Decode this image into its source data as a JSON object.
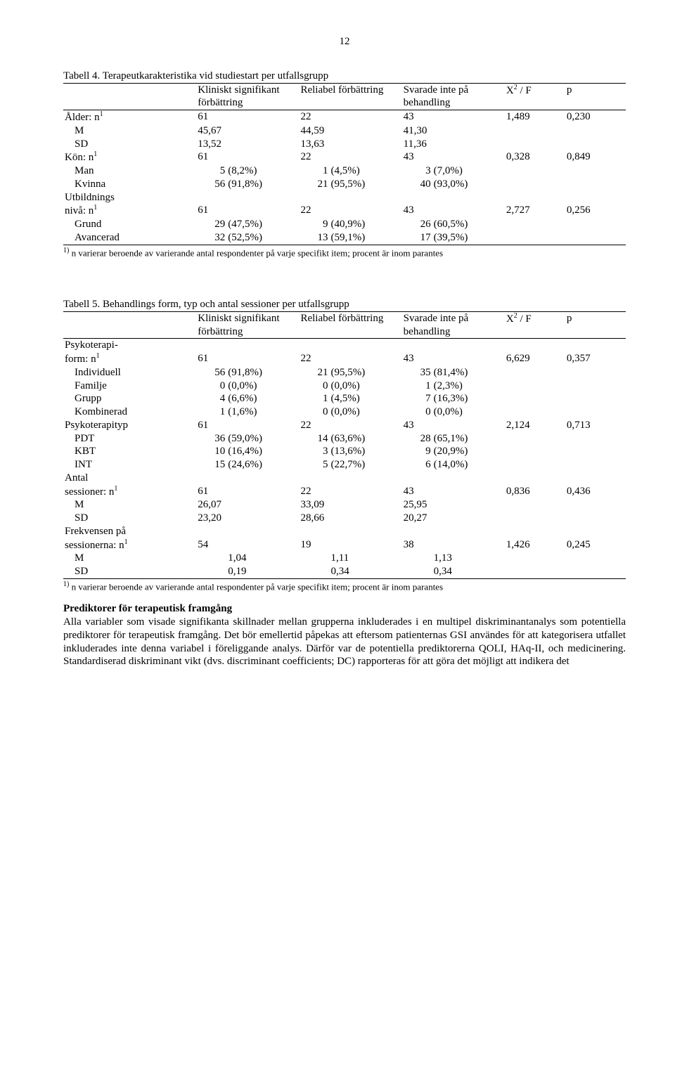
{
  "page_number": "12",
  "table4": {
    "caption": "Tabell 4. Terapeutkarakteristika vid studiestart per utfallsgrupp",
    "headers": {
      "c1": "Kliniskt signifikant förbättring",
      "c2": "Reliabel förbättring",
      "c3": "Svarade inte på behandling",
      "c4_html": "X<span class='sup'>2</span> / F",
      "c5": "p"
    },
    "rows": [
      {
        "label_html": "Ålder: n<span class='sup'>1</span>",
        "a": "61",
        "b": "22",
        "c": "43",
        "stat": "1,489",
        "p": "0,230"
      },
      {
        "label": "M",
        "indent": true,
        "a": "45,67",
        "b": "44,59",
        "c": "41,30"
      },
      {
        "label": "SD",
        "indent": true,
        "a": "13,52",
        "b": "13,63",
        "c": "11,36"
      },
      {
        "label_html": "Kön: n<span class='sup'>1</span>",
        "a": "61",
        "b": "22",
        "c": "43",
        "stat": "0,328",
        "p": "0,849"
      },
      {
        "label": "Man",
        "indent": true,
        "an": "5",
        "ap": "(8,2%)",
        "bn": "1",
        "bp": "(4,5%)",
        "cn": "3",
        "cp": "(7,0%)"
      },
      {
        "label": "Kvinna",
        "indent": true,
        "an": "56",
        "ap": "(91,8%)",
        "bn": "21",
        "bp": "(95,5%)",
        "cn": "40",
        "cp": "(93,0%)"
      },
      {
        "label": "Utbildnings"
      },
      {
        "label_html": "nivå: n<span class='sup'>1</span>",
        "a": "61",
        "b": "22",
        "c": "43",
        "stat": "2,727",
        "p": "0,256"
      },
      {
        "label": "Grund",
        "indent": true,
        "an": "29",
        "ap": "(47,5%)",
        "bn": "9",
        "bp": "(40,9%)",
        "cn": "26",
        "cp": "(60,5%)"
      },
      {
        "label": "Avancerad",
        "indent": true,
        "an": "32",
        "ap": "(52,5%)",
        "bn": "13",
        "bp": "(59,1%)",
        "cn": "17",
        "cp": "(39,5%)"
      }
    ],
    "footnote_html": "<span class='sup'>1)</span> n varierar beroende av varierande antal respondenter på varje specifikt item; procent är inom parantes"
  },
  "table5": {
    "caption": "Tabell 5. Behandlings form, typ och antal sessioner per utfallsgrupp",
    "headers": {
      "c1": "Kliniskt signifikant förbättring",
      "c2": "Reliabel förbättring",
      "c3": "Svarade inte på behandling",
      "c4_html": "X<span class='sup'>2</span> / F",
      "c5": "p"
    },
    "rows": [
      {
        "label": "Psykoterapi-"
      },
      {
        "label_html": "form: n<span class='sup'>1</span>",
        "a": "61",
        "b": "22",
        "c": "43",
        "stat": "6,629",
        "p": "0,357"
      },
      {
        "label": "Individuell",
        "indent": true,
        "an": "56",
        "ap": "(91,8%)",
        "bn": "21",
        "bp": "(95,5%)",
        "cn": "35",
        "cp": "(81,4%)"
      },
      {
        "label": "Familje",
        "indent": true,
        "an": "0",
        "ap": "(0,0%)",
        "bn": "0",
        "bp": "(0,0%)",
        "cn": "1",
        "cp": "(2,3%)"
      },
      {
        "label": "Grupp",
        "indent": true,
        "an": "4",
        "ap": "(6,6%)",
        "bn": "1",
        "bp": "(4,5%)",
        "cn": "7",
        "cp": "(16,3%)"
      },
      {
        "label": "Kombinerad",
        "indent": true,
        "an": "1",
        "ap": "(1,6%)",
        "bn": "0",
        "bp": "(0,0%)",
        "cn": "0",
        "cp": "(0,0%)"
      },
      {
        "label": "Psykoterapityp",
        "a": "61",
        "b": "22",
        "c": "43",
        "stat": "2,124",
        "p": "0,713"
      },
      {
        "label": "PDT",
        "indent": true,
        "an": "36",
        "ap": "(59,0%)",
        "bn": "14",
        "bp": "(63,6%)",
        "cn": "28",
        "cp": "(65,1%)"
      },
      {
        "label": "KBT",
        "indent": true,
        "an": "10",
        "ap": "(16,4%)",
        "bn": "3",
        "bp": "(13,6%)",
        "cn": "9",
        "cp": "(20,9%)"
      },
      {
        "label": "INT",
        "indent": true,
        "an": "15",
        "ap": "(24,6%)",
        "bn": "5",
        "bp": "(22,7%)",
        "cn": "6",
        "cp": "(14,0%)"
      },
      {
        "label": "Antal"
      },
      {
        "label_html": "sessioner: n<span class='sup'>1</span>",
        "a": "61",
        "b": "22",
        "c": "43",
        "stat": "0,836",
        "p": "0,436"
      },
      {
        "label": "M",
        "indent": true,
        "a": "26,07",
        "b": "33,09",
        "c": "25,95"
      },
      {
        "label": "SD",
        "indent": true,
        "a": "23,20",
        "b": "28,66",
        "c": "20,27"
      },
      {
        "label": "Frekvensen på"
      },
      {
        "label_html": "sessionerna: n<span class='sup'>1</span>",
        "a": "54",
        "b": "19",
        "c": "38",
        "stat": "1,426",
        "p": "0,245"
      },
      {
        "label": "M",
        "indent": true,
        "a": "1,04",
        "a_right": true,
        "b": "1,11",
        "b_right": true,
        "c": "1,13",
        "c_right": true
      },
      {
        "label": "SD",
        "indent": true,
        "a": "0,19",
        "a_right": true,
        "b": "0,34",
        "b_right": true,
        "c": "0,34",
        "c_right": true
      }
    ],
    "footnote_html": "<span class='sup'>1)</span> n varierar beroende av varierande antal respondenter på varje specifikt item; procent är inom parantes"
  },
  "section": {
    "heading": "Prediktorer för terapeutisk framgång",
    "paragraph": "Alla variabler som visade signifikanta skillnader mellan grupperna inkluderades i en multipel diskriminantanalys som potentiella prediktorer för terapeutisk framgång. Det bör emellertid påpekas att eftersom patienternas GSI användes för att kategorisera utfallet inkluderades inte denna variabel i föreliggande analys. Därför var de potentiella prediktorerna QOLI, HAq-II, och medicinering. Standardiserad diskriminant vikt (dvs. discriminant coefficients; DC) rapporteras för att göra det möjligt att indikera det"
  }
}
